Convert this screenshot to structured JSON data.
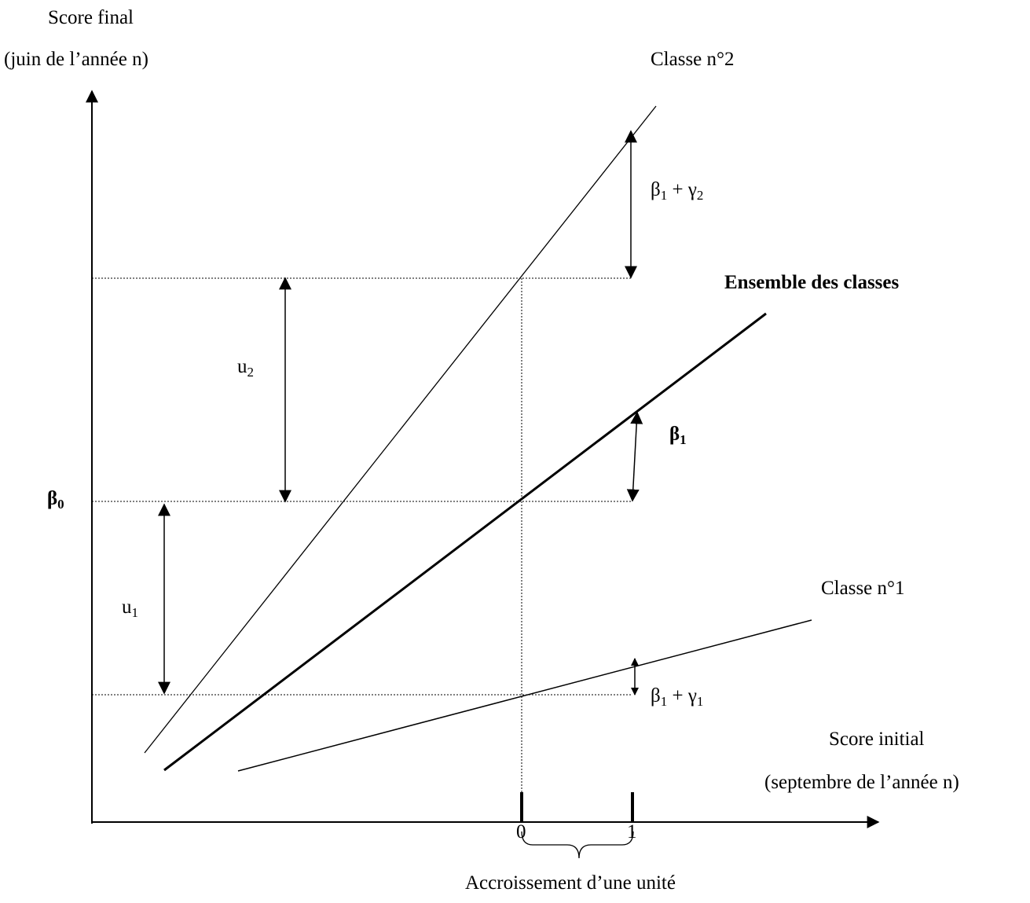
{
  "axes": {
    "y_label_line1": "Score final",
    "y_label_line2": "(juin de l’année n)",
    "x_label_line1": "Score initial",
    "x_label_line2": "(septembre de l’année n)"
  },
  "lines": {
    "class2": "Classe n°2",
    "all": "Ensemble des classes",
    "class1": "Classe n°1"
  },
  "params": {
    "beta": "β",
    "gamma": "γ",
    "u": "u",
    "beta0_sub": "0",
    "beta1_sub": "1",
    "gamma1_sub": "1",
    "gamma2_sub": "2",
    "u1_sub": "1",
    "u2_sub": "2",
    "plus": " + "
  },
  "ticks": {
    "zero": "0",
    "one": "1"
  },
  "brace_label": "Accroissement d’une unité"
}
